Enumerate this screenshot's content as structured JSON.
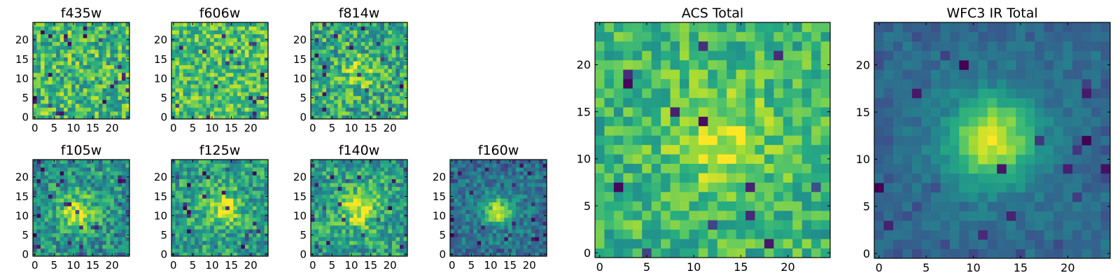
{
  "figure": {
    "colormap": "viridis",
    "colormap_stops": [
      "#440154",
      "#3b528b",
      "#21918c",
      "#5ec962",
      "#fde725"
    ]
  },
  "chart_data": [
    {
      "type": "heatmap",
      "title": "f435w",
      "xlim": [
        0,
        24
      ],
      "ylim": [
        0,
        24
      ],
      "xticks": [
        "0",
        "5",
        "10",
        "15",
        "20"
      ],
      "yticks": [
        "0",
        "5",
        "10",
        "15",
        "20"
      ],
      "grid": false,
      "signal": "noise only",
      "center": [
        12,
        12
      ]
    },
    {
      "type": "heatmap",
      "title": "f606w",
      "xlim": [
        0,
        24
      ],
      "ylim": [
        0,
        24
      ],
      "xticks": [
        "0",
        "5",
        "10",
        "15",
        "20"
      ],
      "yticks": [
        "0",
        "5",
        "10",
        "15",
        "20"
      ],
      "grid": false,
      "signal": "noise only",
      "center": [
        12,
        12
      ]
    },
    {
      "type": "heatmap",
      "title": "f814w",
      "xlim": [
        0,
        24
      ],
      "ylim": [
        0,
        24
      ],
      "xticks": [
        "0",
        "5",
        "10",
        "15",
        "20"
      ],
      "yticks": [
        "0",
        "5",
        "10",
        "15",
        "20"
      ],
      "grid": false,
      "signal": "faint central source",
      "center": [
        12,
        12
      ]
    },
    {
      "type": "heatmap",
      "title": "f105w",
      "xlim": [
        0,
        24
      ],
      "ylim": [
        0,
        24
      ],
      "xticks": [
        "0",
        "5",
        "10",
        "15",
        "20"
      ],
      "yticks": [
        "0",
        "5",
        "10",
        "15",
        "20"
      ],
      "grid": false,
      "signal": "central source",
      "center": [
        11,
        11
      ]
    },
    {
      "type": "heatmap",
      "title": "f125w",
      "xlim": [
        0,
        24
      ],
      "ylim": [
        0,
        24
      ],
      "xticks": [
        "0",
        "5",
        "10",
        "15",
        "20"
      ],
      "yticks": [
        "0",
        "5",
        "10",
        "15",
        "20"
      ],
      "grid": false,
      "signal": "central source",
      "center": [
        13,
        12
      ]
    },
    {
      "type": "heatmap",
      "title": "f140w",
      "xlim": [
        0,
        24
      ],
      "ylim": [
        0,
        24
      ],
      "xticks": [
        "0",
        "5",
        "10",
        "15",
        "20"
      ],
      "yticks": [
        "0",
        "5",
        "10",
        "15",
        "20"
      ],
      "grid": false,
      "signal": "central source",
      "center": [
        12,
        12
      ]
    },
    {
      "type": "heatmap",
      "title": "f160w",
      "xlim": [
        0,
        24
      ],
      "ylim": [
        0,
        24
      ],
      "xticks": [
        "0",
        "5",
        "10",
        "15",
        "20"
      ],
      "yticks": [
        "0",
        "5",
        "10",
        "15",
        "20"
      ],
      "grid": false,
      "signal": "compact central source",
      "center": [
        12,
        11
      ]
    },
    {
      "type": "heatmap",
      "title": "ACS Total",
      "xlim": [
        0,
        24
      ],
      "ylim": [
        0,
        24
      ],
      "xticks": [
        "0",
        "5",
        "10",
        "15",
        "20"
      ],
      "yticks": [
        "0",
        "5",
        "10",
        "15",
        "20"
      ],
      "grid": false,
      "signal": "central source",
      "center": [
        13,
        12
      ]
    },
    {
      "type": "heatmap",
      "title": "WFC3 IR Total",
      "xlim": [
        0,
        24
      ],
      "ylim": [
        0,
        24
      ],
      "xticks": [
        "0",
        "5",
        "10",
        "15",
        "20"
      ],
      "yticks": [
        "0",
        "5",
        "10",
        "15",
        "20"
      ],
      "grid": false,
      "signal": "strong central source",
      "center": [
        12,
        12
      ]
    }
  ]
}
